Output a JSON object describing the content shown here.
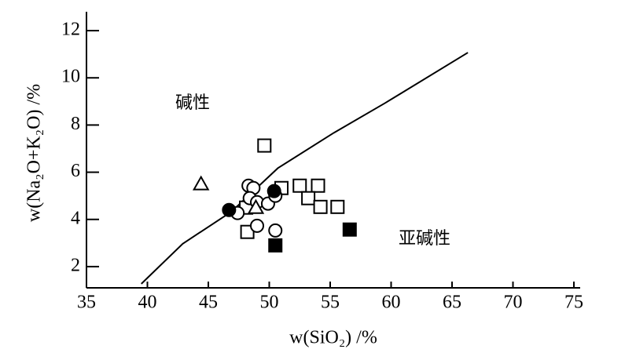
{
  "chart_data": {
    "type": "scatter",
    "x_label": "w(SiO₂) /%",
    "y_label": "w(Na₂O+K₂O) /%",
    "annotations": [
      "碱性",
      "亚碱性"
    ],
    "xlim": [
      35,
      75
    ],
    "ylim": [
      1.1,
      12.8
    ],
    "xticks": [
      35,
      40,
      45,
      50,
      55,
      60,
      65,
      70,
      75
    ],
    "yticks": [
      2,
      4,
      6,
      8,
      10,
      12
    ],
    "boundary": {
      "x": [
        39.5,
        42.9,
        46.9,
        50.7,
        55.3,
        59.5,
        66.3
      ],
      "y": [
        1.27,
        2.97,
        4.33,
        6.17,
        7.67,
        8.93,
        11.07
      ]
    },
    "series": [
      {
        "marker": "square",
        "filled": false,
        "x": [
          49.6,
          51.0,
          52.5,
          54.0,
          53.2,
          54.2,
          55.6,
          48.1,
          48.2
        ],
        "values": [
          7.13,
          5.33,
          5.43,
          5.43,
          4.9,
          4.53,
          4.53,
          4.5,
          3.47
        ]
      },
      {
        "marker": "square",
        "filled": true,
        "x": [
          50.5,
          56.6
        ],
        "values": [
          2.9,
          3.57
        ]
      },
      {
        "marker": "circle",
        "filled": false,
        "x": [
          48.3,
          48.7,
          48.4,
          49.0,
          49.9,
          50.5,
          47.4,
          49.0,
          50.5
        ],
        "values": [
          5.43,
          5.33,
          4.9,
          4.73,
          4.67,
          5.0,
          4.27,
          3.73,
          3.53
        ]
      },
      {
        "marker": "circle",
        "filled": true,
        "x": [
          46.7,
          50.4
        ],
        "values": [
          4.4,
          5.2
        ]
      },
      {
        "marker": "triangle",
        "filled": false,
        "x": [
          44.4,
          48.9
        ],
        "values": [
          5.5,
          4.5
        ]
      }
    ]
  }
}
